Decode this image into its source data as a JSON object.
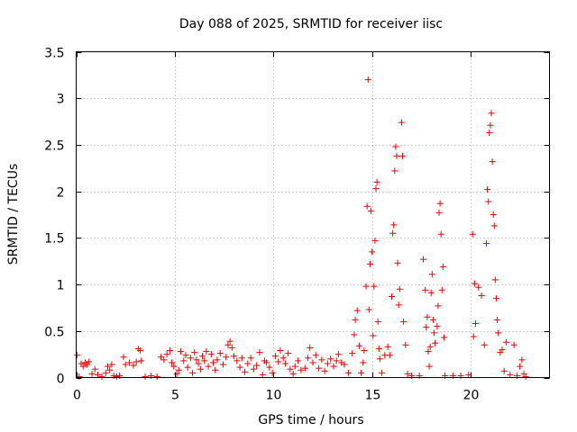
{
  "chart_data": {
    "type": "scatter",
    "title": "Day 088 of 2025, SRMTID for receiver iisc",
    "xlabel": "GPS time / hours",
    "ylabel": "SRMTID / TECUs",
    "xlim": [
      0,
      24
    ],
    "ylim": [
      0,
      3.5
    ],
    "x_ticks": [
      0,
      5,
      10,
      15,
      20
    ],
    "x_tick_labels": [
      "0",
      "5",
      "10",
      "15",
      "20"
    ],
    "y_ticks": [
      0,
      0.5,
      1,
      1.5,
      2,
      2.5,
      3,
      3.5
    ],
    "y_tick_labels": [
      "0",
      "0.5",
      "1",
      "1.5",
      "2",
      "2.5",
      "3",
      "3.5"
    ],
    "grid": true,
    "marker": "+",
    "color": "#ee0000",
    "series": [
      {
        "name": "SRMTID",
        "points": [
          [
            0.05,
            0.24
          ],
          [
            0.15,
            0.01
          ],
          [
            0.25,
            0.15
          ],
          [
            0.35,
            0.12
          ],
          [
            0.45,
            0.16
          ],
          [
            0.55,
            0.14
          ],
          [
            0.65,
            0.17
          ],
          [
            0.8,
            0.04
          ],
          [
            0.95,
            0.09
          ],
          [
            1.1,
            0.03
          ],
          [
            1.3,
            0.01
          ],
          [
            1.5,
            0.05
          ],
          [
            1.6,
            0.12
          ],
          [
            1.7,
            0.08
          ],
          [
            1.8,
            0.14
          ],
          [
            1.9,
            0.02
          ],
          [
            2.05,
            0.01
          ],
          [
            2.2,
            0.02
          ],
          [
            2.4,
            0.22
          ],
          [
            2.5,
            0.14
          ],
          [
            2.7,
            0.16
          ],
          [
            2.9,
            0.13
          ],
          [
            3.05,
            0.17
          ],
          [
            3.15,
            0.31
          ],
          [
            3.25,
            0.29
          ],
          [
            3.3,
            0.18
          ],
          [
            3.5,
            0.01
          ],
          [
            3.8,
            0.02
          ],
          [
            4.1,
            0.01
          ],
          [
            4.3,
            0.22
          ],
          [
            4.45,
            0.19
          ],
          [
            4.6,
            0.25
          ],
          [
            4.75,
            0.29
          ],
          [
            4.85,
            0.16
          ],
          [
            4.95,
            0.12
          ],
          [
            5.1,
            0.04
          ],
          [
            5.2,
            0.08
          ],
          [
            5.3,
            0.28
          ],
          [
            5.45,
            0.18
          ],
          [
            5.55,
            0.24
          ],
          [
            5.65,
            0.11
          ],
          [
            5.8,
            0.21
          ],
          [
            5.9,
            0.05
          ],
          [
            6.0,
            0.27
          ],
          [
            6.1,
            0.19
          ],
          [
            6.2,
            0.15
          ],
          [
            6.3,
            0.09
          ],
          [
            6.4,
            0.23
          ],
          [
            6.5,
            0.18
          ],
          [
            6.6,
            0.28
          ],
          [
            6.7,
            0.12
          ],
          [
            6.85,
            0.25
          ],
          [
            6.95,
            0.16
          ],
          [
            7.05,
            0.08
          ],
          [
            7.15,
            0.19
          ],
          [
            7.3,
            0.26
          ],
          [
            7.45,
            0.14
          ],
          [
            7.6,
            0.22
          ],
          [
            7.7,
            0.35
          ],
          [
            7.8,
            0.39
          ],
          [
            7.9,
            0.32
          ],
          [
            8.0,
            0.23
          ],
          [
            8.15,
            0.18
          ],
          [
            8.3,
            0.11
          ],
          [
            8.4,
            0.21
          ],
          [
            8.55,
            0.06
          ],
          [
            8.7,
            0.15
          ],
          [
            8.85,
            0.21
          ],
          [
            9.0,
            0.09
          ],
          [
            9.15,
            0.13
          ],
          [
            9.3,
            0.27
          ],
          [
            9.45,
            0.03
          ],
          [
            9.55,
            0.18
          ],
          [
            9.65,
            0.16
          ],
          [
            9.8,
            0.11
          ],
          [
            9.95,
            0.05
          ],
          [
            10.1,
            0.23
          ],
          [
            10.25,
            0.17
          ],
          [
            10.35,
            0.29
          ],
          [
            10.5,
            0.21
          ],
          [
            10.6,
            0.15
          ],
          [
            10.75,
            0.26
          ],
          [
            10.85,
            0.09
          ],
          [
            11.0,
            0.04
          ],
          [
            11.1,
            0.12
          ],
          [
            11.25,
            0.18
          ],
          [
            11.4,
            0.08
          ],
          [
            11.6,
            0.1
          ],
          [
            11.75,
            0.21
          ],
          [
            11.85,
            0.32
          ],
          [
            12.0,
            0.16
          ],
          [
            12.15,
            0.24
          ],
          [
            12.3,
            0.1
          ],
          [
            12.45,
            0.19
          ],
          [
            12.6,
            0.07
          ],
          [
            12.75,
            0.15
          ],
          [
            12.9,
            0.2
          ],
          [
            13.05,
            0.12
          ],
          [
            13.2,
            0.18
          ],
          [
            13.3,
            0.25
          ],
          [
            13.45,
            0.16
          ],
          [
            13.6,
            0.14
          ],
          [
            13.8,
            0.05
          ],
          [
            14.0,
            0.26
          ],
          [
            14.1,
            0.46
          ],
          [
            14.15,
            0.62
          ],
          [
            14.25,
            0.72
          ],
          [
            14.35,
            0.34
          ],
          [
            14.45,
            0.05
          ],
          [
            14.55,
            0.16
          ],
          [
            14.6,
            0.29
          ],
          [
            14.7,
            0.98
          ],
          [
            14.75,
            1.84
          ],
          [
            14.8,
            3.2
          ],
          [
            14.85,
            0.73
          ],
          [
            14.9,
            1.22
          ],
          [
            14.95,
            1.79
          ],
          [
            15.0,
            1.35
          ],
          [
            15.05,
            0.45
          ],
          [
            15.1,
            0.98
          ],
          [
            15.15,
            1.47
          ],
          [
            15.2,
            2.03
          ],
          [
            15.25,
            2.1
          ],
          [
            15.3,
            0.6
          ],
          [
            15.35,
            0.31
          ],
          [
            15.4,
            0.2
          ],
          [
            15.5,
            0.05
          ],
          [
            15.65,
            0.24
          ],
          [
            15.8,
            0.33
          ],
          [
            15.9,
            0.24
          ],
          [
            16.0,
            0.87
          ],
          [
            16.05,
            1.55
          ],
          [
            16.1,
            1.64
          ],
          [
            16.15,
            2.22
          ],
          [
            16.2,
            2.48
          ],
          [
            16.25,
            2.38
          ],
          [
            16.3,
            1.23
          ],
          [
            16.35,
            0.78
          ],
          [
            16.4,
            0.95
          ],
          [
            16.5,
            2.74
          ],
          [
            16.55,
            2.38
          ],
          [
            16.6,
            0.6
          ],
          [
            16.7,
            0.35
          ],
          [
            16.8,
            0.04
          ],
          [
            17.0,
            0.02
          ],
          [
            17.4,
            0.02
          ],
          [
            17.6,
            1.27
          ],
          [
            17.7,
            0.94
          ],
          [
            17.75,
            0.54
          ],
          [
            17.8,
            0.65
          ],
          [
            17.85,
            0.28
          ],
          [
            17.9,
            0.12
          ],
          [
            17.95,
            0.33
          ],
          [
            18.0,
            0.91
          ],
          [
            18.05,
            1.11
          ],
          [
            18.1,
            0.62
          ],
          [
            18.15,
            0.48
          ],
          [
            18.2,
            0.37
          ],
          [
            18.3,
            0.55
          ],
          [
            18.35,
            0.77
          ],
          [
            18.4,
            1.77
          ],
          [
            18.45,
            1.87
          ],
          [
            18.5,
            1.54
          ],
          [
            18.55,
            0.94
          ],
          [
            18.6,
            1.19
          ],
          [
            18.65,
            0.43
          ],
          [
            18.7,
            0.02
          ],
          [
            19.1,
            0.02
          ],
          [
            19.5,
            0.02
          ],
          [
            19.9,
            0.03
          ],
          [
            20.1,
            1.54
          ],
          [
            20.15,
            0.44
          ],
          [
            20.2,
            1.01
          ],
          [
            20.25,
            0.58
          ],
          [
            20.4,
            0.97
          ],
          [
            20.55,
            0.88
          ],
          [
            20.7,
            0.35
          ],
          [
            20.8,
            1.44
          ],
          [
            20.85,
            2.02
          ],
          [
            20.9,
            1.89
          ],
          [
            20.95,
            2.63
          ],
          [
            21.0,
            2.71
          ],
          [
            21.05,
            2.84
          ],
          [
            21.1,
            2.32
          ],
          [
            21.15,
            1.75
          ],
          [
            21.2,
            1.63
          ],
          [
            21.25,
            1.05
          ],
          [
            21.3,
            0.85
          ],
          [
            21.35,
            0.62
          ],
          [
            21.4,
            0.48
          ],
          [
            21.5,
            0.27
          ],
          [
            21.6,
            0.3
          ],
          [
            21.7,
            0.07
          ],
          [
            21.8,
            0.38
          ],
          [
            22.0,
            0.03
          ],
          [
            22.2,
            0.35
          ],
          [
            22.35,
            0.02
          ],
          [
            22.5,
            0.12
          ],
          [
            22.6,
            0.19
          ],
          [
            22.7,
            0.04
          ],
          [
            22.8,
            0.01
          ]
        ]
      }
    ]
  }
}
